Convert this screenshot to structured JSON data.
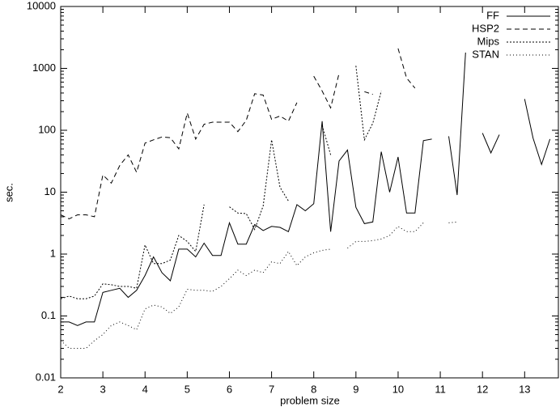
{
  "chart_data": {
    "type": "line",
    "x_label": "problem size",
    "y_label": "sec.",
    "log_y": true,
    "x": [
      2.0,
      2.2,
      2.4,
      2.6,
      2.8,
      3.0,
      3.2,
      3.4,
      3.6,
      3.8,
      4.0,
      4.2,
      4.4,
      4.6,
      4.8,
      5.0,
      5.2,
      5.4,
      5.6,
      5.8,
      6.0,
      6.2,
      6.4,
      6.6,
      6.8,
      7.0,
      7.2,
      7.4,
      7.6,
      7.8,
      8.0,
      8.2,
      8.4,
      8.6,
      8.8,
      9.0,
      9.2,
      9.4,
      9.6,
      9.8,
      10.0,
      10.2,
      10.4,
      10.6,
      10.8,
      11.0,
      11.2,
      11.4,
      11.6,
      11.8,
      12.0,
      12.2,
      12.4,
      12.6,
      12.8,
      13.0,
      13.2,
      13.4,
      13.6
    ],
    "series": [
      {
        "name": "FF",
        "color": "#000000",
        "dash": "none",
        "values": [
          0.08,
          0.08,
          0.07,
          0.08,
          0.08,
          0.24,
          0.26,
          0.28,
          0.2,
          0.26,
          0.45,
          0.9,
          0.5,
          0.37,
          1.2,
          1.2,
          0.9,
          1.5,
          0.95,
          0.95,
          3.2,
          1.45,
          1.45,
          3.0,
          2.4,
          2.8,
          2.7,
          2.3,
          6.3,
          5.0,
          6.5,
          140,
          2.3,
          32,
          48,
          5.7,
          3.1,
          3.3,
          45,
          10,
          37,
          4.6,
          4.6,
          68,
          72,
          null,
          80,
          9,
          1800,
          null,
          90,
          43,
          85,
          null,
          null,
          320,
          75,
          28,
          72
        ]
      },
      {
        "name": "HSP2",
        "color": "#000000",
        "dash": "6 4",
        "values": [
          4.3,
          3.7,
          4.3,
          4.3,
          4.0,
          19,
          14,
          27,
          40,
          21,
          62,
          70,
          78,
          76,
          50,
          190,
          72,
          125,
          135,
          135,
          135,
          95,
          145,
          390,
          370,
          150,
          170,
          140,
          280,
          null,
          750,
          430,
          230,
          830,
          null,
          null,
          420,
          380,
          null,
          null,
          2100,
          700,
          480,
          null,
          null,
          null,
          null,
          null,
          null,
          null,
          null,
          null,
          null,
          null,
          null,
          null,
          null,
          null,
          null
        ]
      },
      {
        "name": "Mips",
        "color": "#000000",
        "dash": "2 2",
        "values": [
          0.19,
          0.21,
          0.19,
          0.19,
          0.21,
          0.33,
          0.32,
          0.3,
          0.3,
          0.28,
          1.4,
          0.7,
          0.7,
          0.8,
          2.0,
          1.6,
          1.1,
          6.3,
          null,
          null,
          5.8,
          4.6,
          4.5,
          2.5,
          6,
          70,
          12,
          7.2,
          null,
          null,
          null,
          120,
          40,
          null,
          null,
          1100,
          70,
          130,
          430,
          null,
          null,
          null,
          null,
          null,
          null,
          null,
          null,
          null,
          null,
          null,
          null,
          null,
          null,
          null,
          null,
          null,
          null,
          null,
          null
        ]
      },
      {
        "name": "STAN",
        "color": "#000000",
        "dash": "1 3",
        "values": [
          0.04,
          0.03,
          0.03,
          0.03,
          0.04,
          0.05,
          0.07,
          0.08,
          0.07,
          0.06,
          0.13,
          0.15,
          0.14,
          0.11,
          0.14,
          0.27,
          0.26,
          0.26,
          0.25,
          0.3,
          0.4,
          0.55,
          0.45,
          0.55,
          0.5,
          0.75,
          0.7,
          1.1,
          0.65,
          0.9,
          1.05,
          1.15,
          1.2,
          null,
          1.25,
          1.6,
          1.6,
          1.65,
          1.75,
          2.0,
          2.8,
          2.3,
          2.3,
          3.2,
          null,
          null,
          3.2,
          3.3,
          null,
          null,
          null,
          null,
          null,
          null,
          null,
          null,
          null,
          null,
          null
        ]
      }
    ],
    "xlim": [
      2,
      13.8
    ],
    "ylim": [
      0.01,
      10000
    ],
    "xticks": [
      2,
      3,
      4,
      5,
      6,
      7,
      8,
      9,
      10,
      11,
      12,
      13
    ],
    "yticks": [
      0.01,
      0.1,
      1,
      10,
      100,
      1000,
      10000
    ],
    "legend": "top-right"
  }
}
